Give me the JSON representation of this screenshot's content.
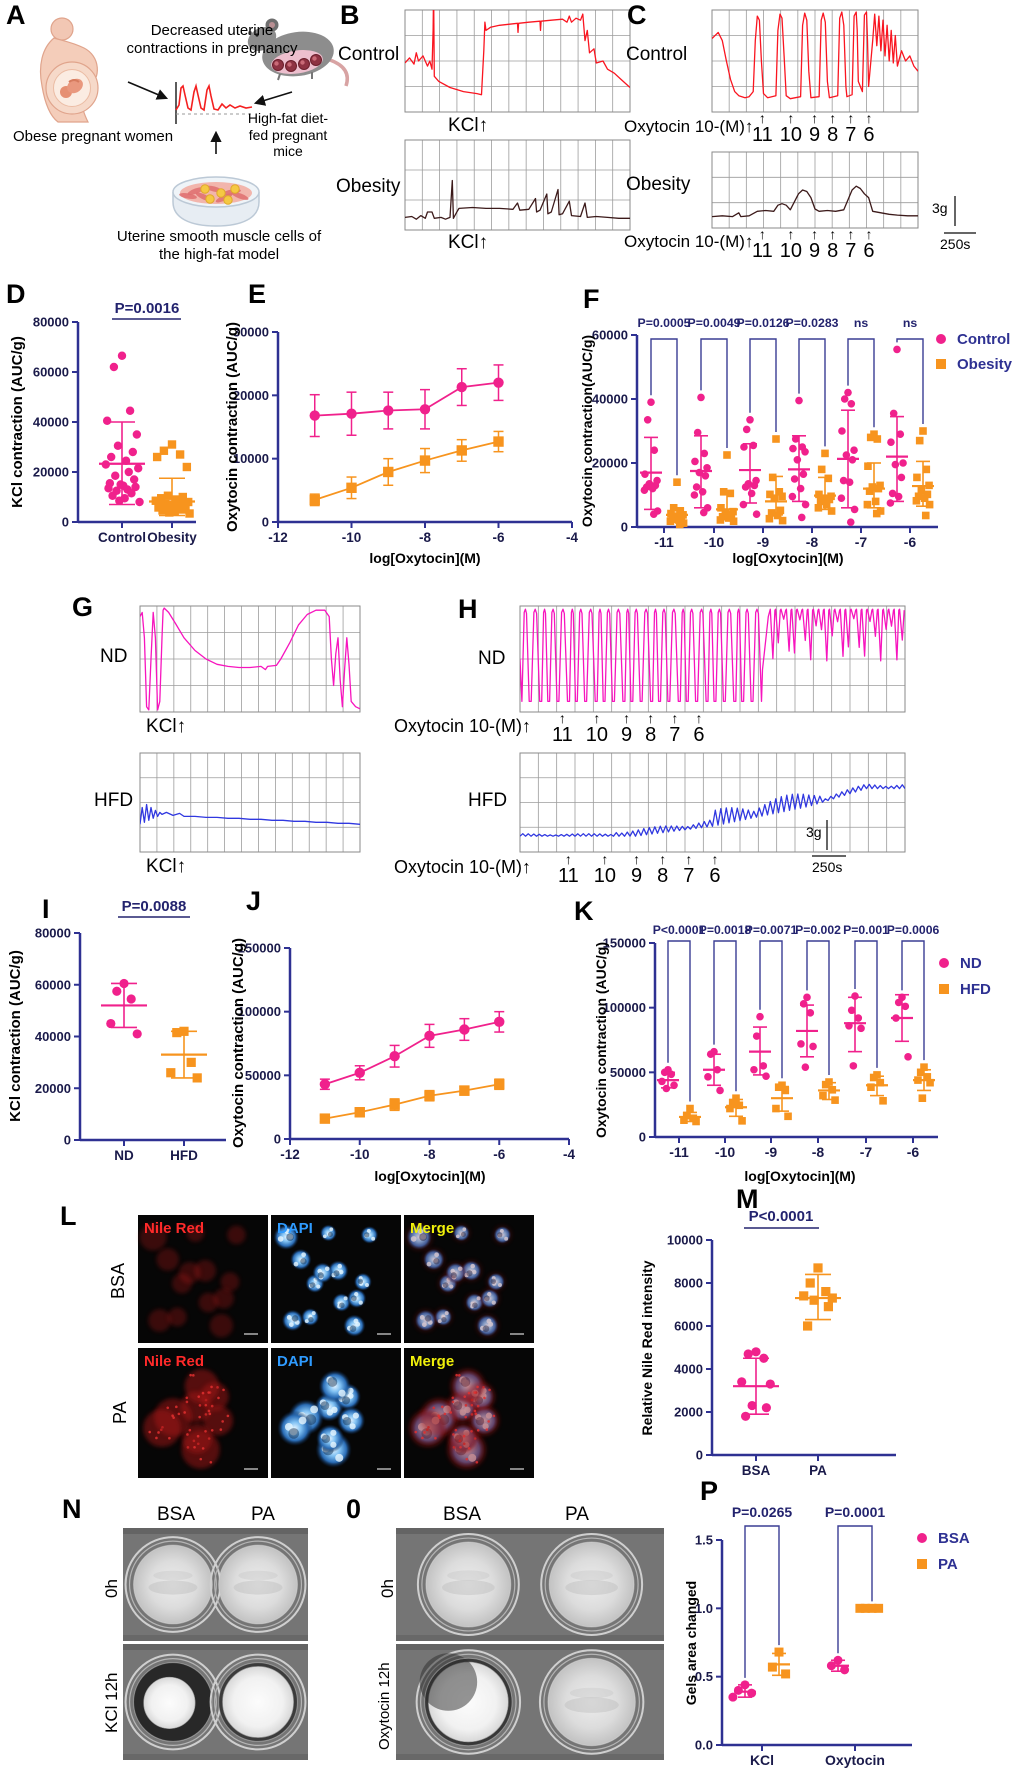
{
  "letters": {
    "A": "A",
    "B": "B",
    "C": "C",
    "D": "D",
    "E": "E",
    "F": "F",
    "G": "G",
    "H": "H",
    "I": "I",
    "J": "J",
    "K": "K",
    "L": "L",
    "M": "M",
    "N": "N",
    "O": "0",
    "P": "P"
  },
  "colors": {
    "pink": "#F0218C",
    "orange": "#F7941E",
    "navy": "#2E3192",
    "tick": "#1A1A4A",
    "ann": "#23236E",
    "red_trace": "#FA1520",
    "dark_trace": "#3C1A1A",
    "magenta_trace": "#F715BE",
    "blue_trace": "#3038E0",
    "grid": "#9C9C9C"
  },
  "panelA": {
    "caption": "Decreased uterine contractions in pregnancy",
    "label_woman": "Obese pregnant women",
    "label_mouse": "High-fat diet-fed pregnant mice",
    "label_dish": "Uterine smooth muscle cells of the high-fat model"
  },
  "arrow": "↑",
  "doses": [
    "11",
    "10",
    "9",
    "8",
    "7",
    "6"
  ],
  "scalebar": {
    "force": "3g",
    "time": "250s"
  },
  "traces": {
    "B": {
      "rows": [
        {
          "label": "Control",
          "stim": "KCl↑",
          "kind": "kcl_control",
          "color": "red_trace"
        },
        {
          "label": "Obesity",
          "stim": "KCl↑",
          "kind": "kcl_obesity",
          "color": "dark_trace"
        }
      ]
    },
    "C": {
      "rows": [
        {
          "label": "Control",
          "stim": "Oxytocin 10-(M)↑",
          "kind": "oxy_control",
          "color": "red_trace"
        },
        {
          "label": "Obesity",
          "stim": "Oxytocin 10-(M)↑",
          "kind": "oxy_obesity",
          "color": "dark_trace"
        }
      ]
    },
    "G": {
      "rows": [
        {
          "label": "ND",
          "stim": "KCl↑",
          "kind": "kcl_nd",
          "color": "magenta_trace"
        },
        {
          "label": "HFD",
          "stim": "KCl↑",
          "kind": "kcl_hfd",
          "color": "blue_trace"
        }
      ]
    },
    "H": {
      "rows": [
        {
          "label": "ND",
          "stim": "Oxytocin 10-(M)↑",
          "kind": "oxy_nd",
          "color": "magenta_trace"
        },
        {
          "label": "HFD",
          "stim": "Oxytocin 10-(M)↑",
          "kind": "oxy_hfd",
          "color": "blue_trace"
        }
      ]
    }
  },
  "micro": {
    "row_labels": [
      "BSA",
      "PA"
    ],
    "col_labels": [
      {
        "label": "Nile Red",
        "color": "#FF2A2A"
      },
      {
        "label": "DAPI",
        "color": "#2F9BFF"
      },
      {
        "label": "Merge",
        "color": "#F0F00A"
      }
    ]
  },
  "gels": {
    "N": {
      "cols": [
        "BSA",
        "PA"
      ],
      "rows": [
        "0h",
        "KCl 12h"
      ]
    },
    "O": {
      "cols": [
        "BSA",
        "PA"
      ],
      "rows": [
        "0h",
        "Oxytocin 12h"
      ]
    }
  },
  "chart_data": [
    {
      "id": "D",
      "type": "scatter",
      "p_label": "P=0.0016",
      "ylabel": "KCl contraction (AUC/g)",
      "ylim": [
        0,
        80000
      ],
      "yticks": [
        0,
        20000,
        40000,
        60000,
        80000
      ],
      "categories": [
        "Control",
        "Obesity"
      ],
      "series": [
        {
          "name": "Control",
          "marker": "circle",
          "values": [
            66500,
            62000,
            44500,
            40500,
            35000,
            30500,
            28000,
            26000,
            24500,
            23000,
            21500,
            20000,
            18500,
            17000,
            15500,
            15000,
            14500,
            14000,
            13500,
            13000,
            12500,
            11500,
            10500,
            9500,
            8500,
            8000
          ],
          "mean": 23300,
          "sd_low": 7000,
          "sd_high": 40000
        },
        {
          "name": "Obesity",
          "marker": "square",
          "values": [
            31000,
            28500,
            27000,
            26000,
            22000,
            10500,
            10000,
            9500,
            9000,
            8500,
            8000,
            7500,
            7200,
            7000,
            6800,
            6500,
            6200,
            6000,
            5800,
            5500,
            5200,
            5000,
            4600,
            4200,
            3800,
            3400
          ],
          "mean": 8200,
          "sd_low": 2600,
          "sd_high": 17500
        }
      ]
    },
    {
      "id": "E",
      "type": "line",
      "ylabel": "Oxytocin contraction (AUC/g)",
      "xlabel": "log[Oxytocin](M)",
      "ylim": [
        0,
        30000
      ],
      "yticks": [
        0,
        10000,
        20000,
        30000
      ],
      "xlim": [
        -12,
        -4
      ],
      "xticks": [
        -12,
        -10,
        -8,
        -6,
        -4
      ],
      "x": [
        -11,
        -10,
        -9,
        -8,
        -7,
        -6
      ],
      "series": [
        {
          "name": "Control",
          "marker": "circle",
          "values": [
            16800,
            17100,
            17600,
            17800,
            21300,
            22000
          ],
          "err": [
            3300,
            3400,
            2900,
            3100,
            2900,
            2800
          ]
        },
        {
          "name": "Obesity",
          "marker": "square",
          "values": [
            3500,
            5400,
            7900,
            9700,
            11300,
            12700
          ],
          "err": [
            900,
            1700,
            2100,
            1900,
            1700,
            1600
          ]
        }
      ]
    },
    {
      "id": "F",
      "type": "grouped",
      "ylabel": "Oxytocin contraction(AUC/g)",
      "xlabel": "log[Oxytocin](M)",
      "ylim": [
        0,
        60000
      ],
      "yticks": [
        0,
        20000,
        40000,
        60000
      ],
      "categories": [
        "-11",
        "-10",
        "-9",
        "-8",
        "-7",
        "-6"
      ],
      "annotations": [
        "P=0.0005",
        "P=0.0049",
        "P=0.0126",
        "P=0.0283",
        "ns",
        "ns"
      ],
      "legend": [
        "Control",
        "Obesity"
      ],
      "series": [
        {
          "name": "Control",
          "marker": "circle",
          "groups": [
            [
              39000,
              33500,
              24000,
              16500,
              14500,
              13500,
              13000,
              12500,
              12000,
              11500,
              5000,
              4000
            ],
            [
              40500,
              29500,
              23000,
              20500,
              18500,
              17000,
              16000,
              12500,
              11000,
              10000,
              6000,
              4500
            ],
            [
              33500,
              30500,
              25500,
              25000,
              14500,
              13500,
              13000,
              12500,
              10500,
              7000,
              4000
            ],
            [
              39500,
              27500,
              25000,
              24500,
              23500,
              21000,
              16500,
              15000,
              12000,
              9500,
              7000,
              3000
            ],
            [
              42000,
              40000,
              38500,
              30000,
              24000,
              22500,
              21000,
              14500,
              14000,
              9000,
              5500,
              1500
            ],
            [
              55500,
              35500,
              29000,
              26500,
              20000,
              19500,
              15500,
              10500,
              9500,
              7500
            ]
          ],
          "means": [
            17000,
            17500,
            17800,
            18000,
            21300,
            22000
          ],
          "err_lo": [
            5500,
            6000,
            7500,
            8000,
            6000,
            8000
          ],
          "err_hi": [
            28000,
            28500,
            26000,
            28500,
            36500,
            34500
          ]
        },
        {
          "name": "Obesity",
          "marker": "square",
          "groups": [
            [
              14000,
              6000,
              5000,
              4200,
              3800,
              3400,
              3000,
              2600,
              2200,
              1800,
              1200,
              800
            ],
            [
              22500,
              11000,
              10500,
              6000,
              4800,
              4200,
              3800,
              3200,
              2800,
              2200,
              1800
            ],
            [
              27500,
              15500,
              11000,
              10200,
              9600,
              9000,
              5200,
              4400,
              3600,
              2600,
              2000
            ],
            [
              23000,
              18000,
              15200,
              10200,
              9600,
              9000,
              8600,
              8000,
              7000,
              6000,
              5000
            ],
            [
              29000,
              28000,
              27500,
              19000,
              13000,
              12500,
              12000,
              11200,
              8000,
              7000,
              5000,
              4200
            ],
            [
              30000,
              27000,
              18000,
              15500,
              13000,
              11500,
              10200,
              9600,
              9000,
              8200,
              7000,
              3600
            ]
          ],
          "means": [
            3800,
            5500,
            8000,
            9800,
            12000,
            12800
          ],
          "err_lo": [
            1500,
            2500,
            3800,
            5500,
            6000,
            6500
          ],
          "err_hi": [
            6000,
            10500,
            15800,
            15500,
            20000,
            20500
          ]
        }
      ]
    },
    {
      "id": "I",
      "type": "scatter",
      "p_label": "P=0.0088",
      "ylabel": "KCl contraction (AUC/g)",
      "ylim": [
        0,
        80000
      ],
      "yticks": [
        0,
        20000,
        40000,
        60000,
        80000
      ],
      "categories": [
        "ND",
        "HFD"
      ],
      "series": [
        {
          "name": "ND",
          "marker": "circle",
          "values": [
            60500,
            57500,
            54500,
            45000,
            41000
          ],
          "mean": 52000,
          "sd_low": 43500,
          "sd_high": 60500
        },
        {
          "name": "HFD",
          "marker": "square",
          "values": [
            42000,
            41500,
            30000,
            26000,
            24000
          ],
          "mean": 33000,
          "sd_low": 24000,
          "sd_high": 42000
        }
      ]
    },
    {
      "id": "J",
      "type": "line",
      "ylabel": "Oxytocin contraction (AUC/g)",
      "xlabel": "log[Oxytocin](M)",
      "ylim": [
        0,
        150000
      ],
      "yticks": [
        0,
        50000,
        100000,
        150000
      ],
      "xlim": [
        -12,
        -4
      ],
      "xticks": [
        -12,
        -10,
        -8,
        -6,
        -4
      ],
      "x": [
        -11,
        -10,
        -9,
        -8,
        -7,
        -6
      ],
      "series": [
        {
          "name": "ND",
          "marker": "circle",
          "values": [
            43000,
            52000,
            65000,
            81000,
            86000,
            92000
          ],
          "err": [
            4000,
            5500,
            8500,
            9000,
            8500,
            8000
          ]
        },
        {
          "name": "HFD",
          "marker": "square",
          "values": [
            16000,
            21000,
            27000,
            34000,
            38000,
            43000
          ],
          "err": [
            2500,
            3500,
            4500,
            4000,
            3500,
            4000
          ]
        }
      ]
    },
    {
      "id": "K",
      "type": "grouped",
      "ylabel": "Oxytocin contraction (AUC/g)",
      "xlabel": "log[Oxytocin](M)",
      "ylim": [
        0,
        150000
      ],
      "yticks": [
        0,
        50000,
        100000,
        150000
      ],
      "categories": [
        "-11",
        "-10",
        "-9",
        "-8",
        "-7",
        "-6"
      ],
      "annotations": [
        "P<0.0001",
        "P=0.0018",
        "P=0.0071",
        "P=0.002",
        "P=0.001",
        "P=0.0006"
      ],
      "legend": [
        "ND",
        "HFD"
      ],
      "series": [
        {
          "name": "ND",
          "marker": "circle",
          "groups": [
            [
              52000,
              50000,
              48500,
              43000,
              40000,
              37500
            ],
            [
              66000,
              64000,
              52000,
              46500,
              36000
            ],
            [
              93000,
              78000,
              55000,
              52000,
              47000
            ],
            [
              108000,
              103000,
              96000,
              72000,
              70000,
              54000
            ],
            [
              109000,
              98000,
              92000,
              86000,
              84000,
              55000
            ],
            [
              108000,
              104000,
              101000,
              92000,
              62000
            ]
          ],
          "means": [
            44000,
            52000,
            66000,
            82000,
            88000,
            92000
          ],
          "err_lo": [
            38000,
            40000,
            48000,
            62000,
            66000,
            74000
          ],
          "err_hi": [
            50000,
            64000,
            85000,
            102000,
            108000,
            110000
          ]
        },
        {
          "name": "HFD",
          "marker": "square",
          "groups": [
            [
              22000,
              16500,
              14500,
              13000,
              12000
            ],
            [
              30000,
              26500,
              24500,
              22000,
              12500
            ],
            [
              40000,
              38500,
              36000,
              22000,
              16000
            ],
            [
              42500,
              40500,
              36500,
              32000,
              28500
            ],
            [
              48000,
              46000,
              42000,
              38500,
              28000
            ],
            [
              54000,
              50000,
              46500,
              44000,
              42000,
              30000
            ]
          ],
          "means": [
            15500,
            23000,
            30000,
            36000,
            40000,
            44000
          ],
          "err_lo": [
            12000,
            16000,
            20000,
            29000,
            32000,
            36000
          ],
          "err_hi": [
            19000,
            29000,
            39000,
            42000,
            47000,
            52000
          ]
        }
      ]
    },
    {
      "id": "M",
      "type": "scatter",
      "p_label": "P<0.0001",
      "ylabel": "Relative Nile Red intensity",
      "ylim": [
        0,
        10000
      ],
      "yticks": [
        0,
        2000,
        4000,
        6000,
        8000,
        10000
      ],
      "categories": [
        "BSA",
        "PA"
      ],
      "series": [
        {
          "name": "BSA",
          "marker": "circle",
          "values": [
            4800,
            4700,
            4500,
            3400,
            3300,
            2300,
            2200,
            1800
          ],
          "mean": 3200,
          "sd_low": 1900,
          "sd_high": 4500
        },
        {
          "name": "PA",
          "marker": "square",
          "values": [
            8700,
            8000,
            7600,
            7400,
            7300,
            7200,
            6900,
            6000
          ],
          "mean": 7300,
          "sd_low": 6300,
          "sd_high": 8400
        }
      ]
    },
    {
      "id": "P",
      "type": "grouped",
      "ylabel": "Gels area changed",
      "ylim": [
        0,
        1.5
      ],
      "yticks": [
        0,
        0.5,
        1,
        1.5
      ],
      "categories": [
        "KCl",
        "Oxytocin"
      ],
      "annotations": [
        "P=0.0265",
        "P=0.0001"
      ],
      "legend": [
        "BSA",
        "PA"
      ],
      "series": [
        {
          "name": "BSA",
          "marker": "circle",
          "groups": [
            [
              0.44,
              0.4,
              0.38,
              0.35
            ],
            [
              0.62,
              0.58,
              0.55
            ]
          ],
          "means": [
            0.39,
            0.58
          ],
          "err_lo": [
            0.35,
            0.54
          ],
          "err_hi": [
            0.44,
            0.62
          ]
        },
        {
          "name": "PA",
          "marker": "square",
          "groups": [
            [
              0.68,
              0.57,
              0.52
            ],
            [
              1.0,
              1.0,
              1.0,
              1.0
            ]
          ],
          "means": [
            0.59,
            1.0
          ],
          "err_lo": [
            0.51,
            1.0
          ],
          "err_hi": [
            0.67,
            1.0
          ]
        }
      ]
    }
  ]
}
